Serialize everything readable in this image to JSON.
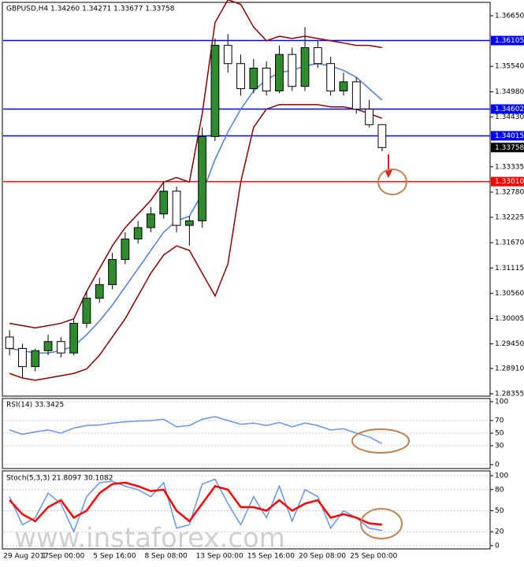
{
  "chart_data": [
    {
      "type": "candlestick",
      "title": "GBPUSD,H4  1.34260 1.34271 1.33677 1.33758",
      "categories": [
        "29 Aug 2017",
        null,
        null,
        "1 Sep 00:00",
        null,
        null,
        null,
        "5 Sep 16:00",
        null,
        null,
        null,
        "8 Sep 08:00",
        null,
        null,
        null,
        "13 Sep 00:00",
        null,
        null,
        null,
        "15 Sep 16:00",
        null,
        null,
        null,
        "20 Sep 08:00",
        null,
        null,
        null,
        "25 Sep 00:00",
        null,
        null
      ],
      "open": [
        1.296,
        1.2935,
        1.2895,
        1.293,
        1.295,
        1.2925,
        1.299,
        1.3045,
        1.3075,
        1.313,
        1.3175,
        1.32,
        1.323,
        1.328,
        1.3205,
        1.3215,
        1.34,
        1.36,
        1.356,
        1.3505,
        1.355,
        1.35,
        1.358,
        1.351,
        1.3595,
        1.356,
        1.35,
        1.352,
        1.346,
        1.3426
      ],
      "high": [
        1.2975,
        1.2945,
        1.2935,
        1.2965,
        1.296,
        1.3,
        1.306,
        1.309,
        1.3145,
        1.319,
        1.3215,
        1.3245,
        1.33,
        1.329,
        1.3225,
        1.342,
        1.3615,
        1.3625,
        1.358,
        1.357,
        1.3565,
        1.36,
        1.3595,
        1.364,
        1.361,
        1.3575,
        1.354,
        1.353,
        1.348,
        1.34271
      ],
      "low": [
        1.292,
        1.287,
        1.2885,
        1.292,
        1.2915,
        1.292,
        1.298,
        1.3035,
        1.3065,
        1.312,
        1.3165,
        1.319,
        1.322,
        1.319,
        1.316,
        1.32,
        1.339,
        1.354,
        1.349,
        1.3495,
        1.349,
        1.3495,
        1.35,
        1.35,
        1.355,
        1.349,
        1.349,
        1.345,
        1.342,
        1.33677
      ],
      "close": [
        1.2935,
        1.2895,
        1.293,
        1.295,
        1.2925,
        1.299,
        1.3045,
        1.3075,
        1.313,
        1.3175,
        1.32,
        1.323,
        1.328,
        1.3205,
        1.3215,
        1.34,
        1.36,
        1.356,
        1.3505,
        1.355,
        1.35,
        1.358,
        1.351,
        1.3595,
        1.356,
        1.35,
        1.352,
        1.346,
        1.3426,
        1.33758
      ],
      "series": [
        {
          "color": "#8b0000",
          "values": [
            1.299,
            1.2985,
            1.298,
            1.2985,
            1.299,
            1.3,
            1.306,
            1.311,
            1.316,
            1.32,
            1.323,
            1.326,
            1.33,
            1.331,
            1.33,
            1.345,
            1.365,
            1.37,
            1.369,
            1.364,
            1.361,
            1.362,
            1.3615,
            1.362,
            1.3615,
            1.361,
            1.3605,
            1.36,
            1.36,
            1.3595
          ]
        },
        {
          "color": "#8b0000",
          "values": [
            1.288,
            1.287,
            1.2865,
            1.287,
            1.2875,
            1.288,
            1.289,
            1.292,
            1.296,
            1.3,
            1.305,
            1.31,
            1.314,
            1.316,
            1.315,
            1.31,
            1.305,
            1.312,
            1.33,
            1.342,
            1.346,
            1.347,
            1.347,
            1.347,
            1.347,
            1.3465,
            1.3465,
            1.346,
            1.345,
            1.344
          ]
        },
        {
          "color": "#4a7fd8",
          "values": [
            1.2935,
            1.293,
            1.2925,
            1.2925,
            1.293,
            1.294,
            1.2965,
            1.2995,
            1.303,
            1.307,
            1.311,
            1.315,
            1.319,
            1.3215,
            1.3225,
            1.3275,
            1.335,
            1.341,
            1.346,
            1.35,
            1.3525,
            1.354,
            1.3545,
            1.3555,
            1.356,
            1.3555,
            1.3545,
            1.353,
            1.3505,
            1.348
          ]
        }
      ],
      "ylim": [
        1.28303,
        1.36926
      ],
      "yticks": [
        {
          "value": 1.3665,
          "label": "1.36650"
        },
        {
          "value": 1.3554,
          "label": "1.35540"
        },
        {
          "value": 1.3498,
          "label": "1.34980"
        },
        {
          "value": 1.3443,
          "label": "1.34430"
        },
        {
          "value": 1.33335,
          "label": "1.33335"
        },
        {
          "value": 1.3278,
          "label": "1.32780"
        },
        {
          "value": 1.32225,
          "label": "1.32225"
        },
        {
          "value": 1.3167,
          "label": "1.31670"
        },
        {
          "value": 1.31115,
          "label": "1.31115"
        },
        {
          "value": 1.3056,
          "label": "1.30560"
        },
        {
          "value": 1.30005,
          "label": "1.30005"
        },
        {
          "value": 1.2945,
          "label": "1.29450"
        },
        {
          "value": 1.2891,
          "label": "1.28910"
        },
        {
          "value": 1.28355,
          "label": "1.28355"
        }
      ],
      "levels": [
        {
          "value": 1.36105,
          "label": "1.36105",
          "color": "#0000ff"
        },
        {
          "value": 1.34602,
          "label": "1.34602",
          "color": "#0000ff"
        },
        {
          "value": 1.34015,
          "label": "1.34015",
          "color": "#0000ff"
        },
        {
          "value": 1.3301,
          "label": "1.33010",
          "color": "#ff0000"
        }
      ],
      "price_label": {
        "value": 1.33758,
        "label": "1.33758"
      },
      "watermark": "www.instaforex.com"
    },
    {
      "type": "line",
      "title": "RSI(14) 33.3425",
      "ylim": [
        0,
        100
      ],
      "yticks": [
        0,
        30,
        50,
        70,
        100
      ],
      "series": [
        {
          "color": "#6495ed",
          "values": [
            55,
            48,
            52,
            55,
            50,
            58,
            62,
            63,
            66,
            68,
            69,
            70,
            72,
            60,
            62,
            72,
            76,
            70,
            64,
            66,
            62,
            67,
            60,
            66,
            62,
            55,
            57,
            50,
            44,
            33.3425
          ]
        }
      ]
    },
    {
      "type": "line",
      "title": "Stoch(5,3,3) 21.8097 30.1082",
      "ylim": [
        0,
        100
      ],
      "yticks": [
        0,
        20,
        50,
        80,
        100
      ],
      "series": [
        {
          "color": "#6495ed",
          "values": [
            70,
            30,
            40,
            75,
            60,
            20,
            70,
            90,
            92,
            85,
            80,
            70,
            90,
            25,
            30,
            88,
            95,
            60,
            30,
            70,
            40,
            85,
            35,
            80,
            70,
            25,
            50,
            40,
            25,
            21.8097
          ]
        },
        {
          "color": "#ff0000",
          "values": [
            65,
            45,
            35,
            55,
            65,
            40,
            50,
            75,
            88,
            90,
            85,
            78,
            80,
            50,
            35,
            60,
            85,
            80,
            55,
            55,
            50,
            65,
            50,
            60,
            65,
            40,
            45,
            40,
            32,
            30.1082
          ]
        }
      ]
    }
  ]
}
